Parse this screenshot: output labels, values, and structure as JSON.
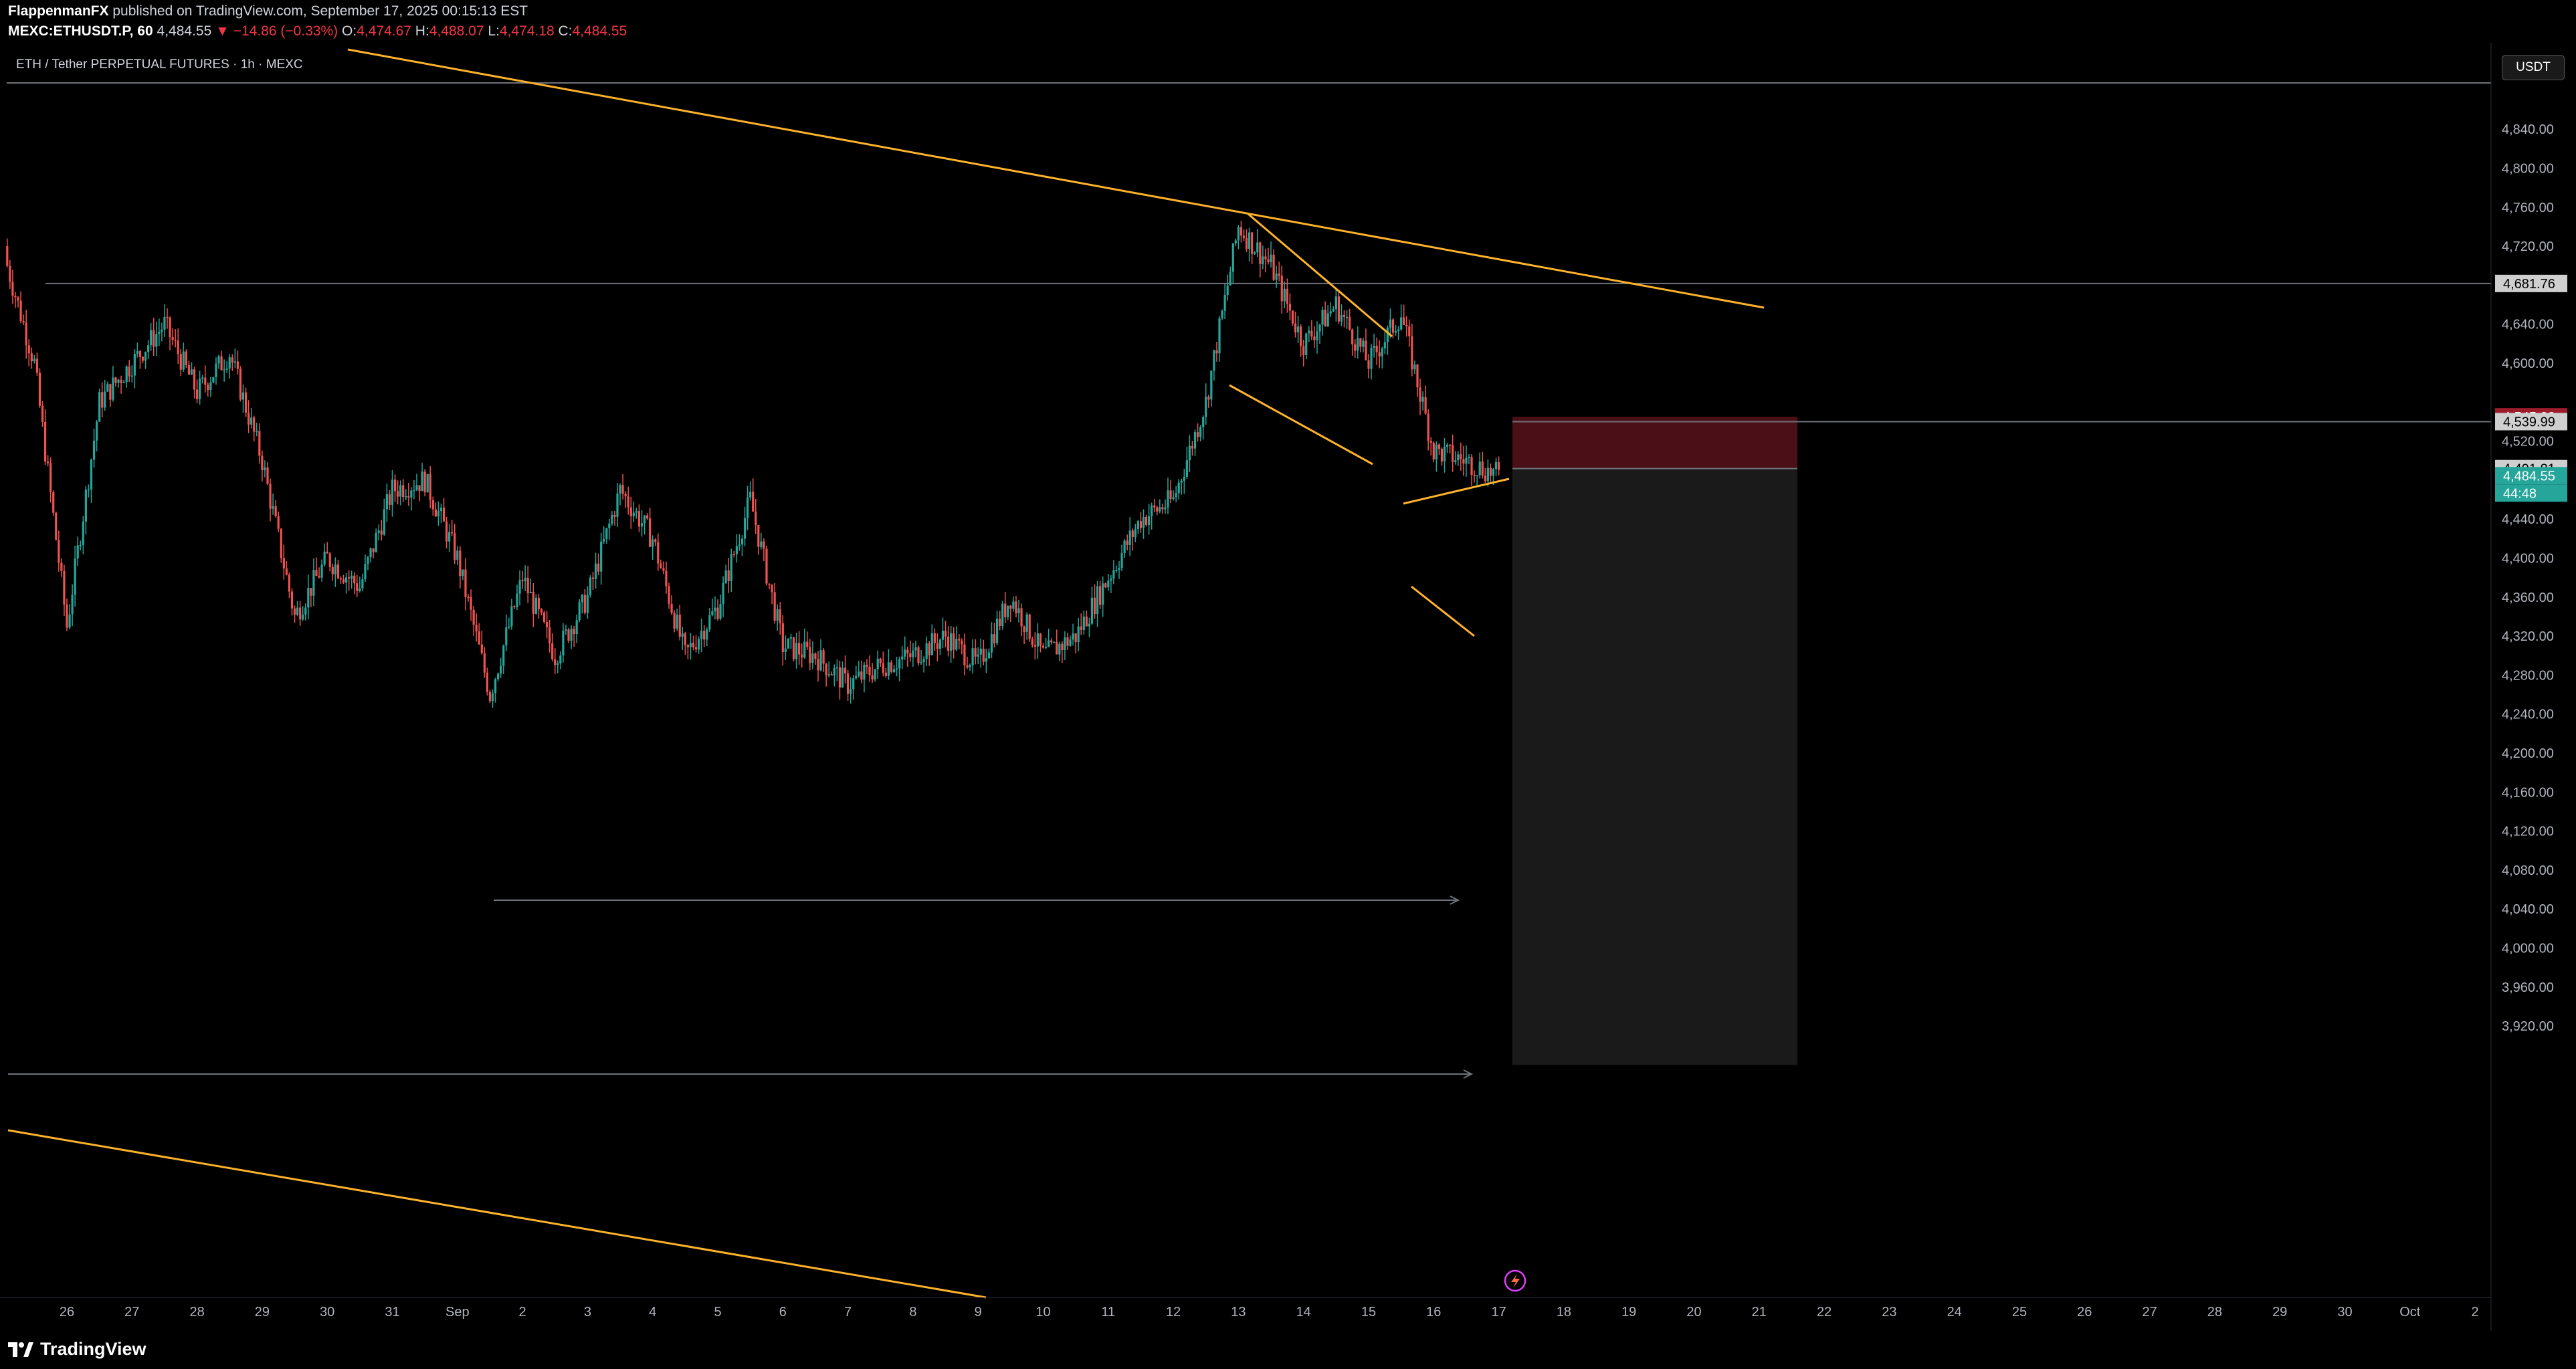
{
  "header": {
    "author": "FlappenmanFX",
    "published": " published on TradingView.com, September 17, 2025 00:15:13 EST",
    "symbol": "MEXC:ETHUSDT.P, 60",
    "price": "4,484.55",
    "change": "▼ −14.86 (−0.33%)",
    "open_label": "O:",
    "open": "4,474.67",
    "high_label": "H:",
    "high": "4,488.07",
    "low_label": "L:",
    "low": "4,474.18",
    "close_label": "C:",
    "close": "4,484.55"
  },
  "chart_title": "ETH / Tether PERPETUAL FUTURES · 1h · MEXC",
  "currency_button": "USDT",
  "footer_brand": "TradingView",
  "price_axis": {
    "ticks": [
      "4,840.00",
      "4,800.00",
      "4,760.00",
      "4,720.00",
      "4,640.00",
      "4,600.00",
      "4,520.00",
      "4,440.00",
      "4,400.00",
      "4,360.00",
      "4,320.00",
      "4,280.00",
      "4,240.00",
      "4,200.00",
      "4,160.00",
      "4,120.00",
      "4,080.00",
      "4,040.00",
      "4,000.00",
      "3,960.00",
      "3,920.00"
    ],
    "tick_values": [
      4840,
      4800,
      4760,
      4720,
      4640,
      4600,
      4520,
      4440,
      4400,
      4360,
      4320,
      4280,
      4240,
      4200,
      4160,
      4120,
      4080,
      4040,
      4000,
      3960,
      3920
    ],
    "tags": [
      {
        "label": "4,681.76",
        "value": 4681.76,
        "bg": "#cfcfcf",
        "fg": "#000000"
      },
      {
        "label": "4,545.00",
        "value": 4545.0,
        "bg": "#9c1c2c",
        "fg": "#ffffff"
      },
      {
        "label": "4,539.99",
        "value": 4539.99,
        "bg": "#cfcfcf",
        "fg": "#000000"
      },
      {
        "label": "4,491.81",
        "value": 4491.81,
        "bg": "#cfcfcf",
        "fg": "#000000"
      },
      {
        "label": "4,484.55",
        "value": 4484.55,
        "bg": "#26a69a",
        "fg": "#ffffff"
      },
      {
        "label": "44:48",
        "value": null,
        "bg": "#26a69a",
        "fg": "#ffffff"
      }
    ]
  },
  "time_axis": {
    "labels": [
      "26",
      "27",
      "28",
      "29",
      "30",
      "31",
      "Sep",
      "2",
      "3",
      "4",
      "5",
      "6",
      "7",
      "8",
      "9",
      "10",
      "11",
      "12",
      "13",
      "14",
      "15",
      "16",
      "17",
      "18",
      "19",
      "20",
      "21",
      "22",
      "23",
      "24",
      "25",
      "26",
      "27",
      "28",
      "29",
      "30",
      "Oct",
      "2"
    ]
  },
  "colors": {
    "up": "#26a69a",
    "down": "#ef5350",
    "trendline": "#ffb32b",
    "level_line": "#6f7379",
    "short_zone": "#4a0f17",
    "target_zone": "#1a1a1a",
    "background": "#000000"
  },
  "chart_data": {
    "type": "candlestick",
    "symbol": "MEXC:ETHUSDT.P",
    "interval": "1h",
    "ylim": [
      3890,
      4870
    ],
    "levels": [
      4681.76,
      4539.99,
      4491.81
    ],
    "close_path": [
      {
        "x": "2025-08-25",
        "y": 4720
      },
      {
        "x": "2025-08-25 12:00",
        "y": 4600
      },
      {
        "x": "2025-08-26",
        "y": 4330
      },
      {
        "x": "2025-08-26 12:00",
        "y": 4560
      },
      {
        "x": "2025-08-27",
        "y": 4600
      },
      {
        "x": "2025-08-27 12:00",
        "y": 4640
      },
      {
        "x": "2025-08-28",
        "y": 4570
      },
      {
        "x": "2025-08-28 12:00",
        "y": 4610
      },
      {
        "x": "2025-08-29",
        "y": 4500
      },
      {
        "x": "2025-08-29 12:00",
        "y": 4340
      },
      {
        "x": "2025-08-30",
        "y": 4400
      },
      {
        "x": "2025-08-30 12:00",
        "y": 4370
      },
      {
        "x": "2025-08-31",
        "y": 4470
      },
      {
        "x": "2025-08-31 12:00",
        "y": 4480
      },
      {
        "x": "2025-09-01",
        "y": 4400
      },
      {
        "x": "2025-09-01 12:00",
        "y": 4260
      },
      {
        "x": "2025-09-02",
        "y": 4380
      },
      {
        "x": "2025-09-02 12:00",
        "y": 4300
      },
      {
        "x": "2025-09-03",
        "y": 4360
      },
      {
        "x": "2025-09-03 12:00",
        "y": 4470
      },
      {
        "x": "2025-09-04",
        "y": 4420
      },
      {
        "x": "2025-09-04 12:00",
        "y": 4300
      },
      {
        "x": "2025-09-05",
        "y": 4350
      },
      {
        "x": "2025-09-05 12:00",
        "y": 4460
      },
      {
        "x": "2025-09-06",
        "y": 4310
      },
      {
        "x": "2025-09-06 12:00",
        "y": 4300
      },
      {
        "x": "2025-09-07",
        "y": 4270
      },
      {
        "x": "2025-09-07 12:00",
        "y": 4290
      },
      {
        "x": "2025-09-08",
        "y": 4300
      },
      {
        "x": "2025-09-08 12:00",
        "y": 4320
      },
      {
        "x": "2025-09-09",
        "y": 4290
      },
      {
        "x": "2025-09-09 12:00",
        "y": 4360
      },
      {
        "x": "2025-09-10",
        "y": 4300
      },
      {
        "x": "2025-09-10 12:00",
        "y": 4320
      },
      {
        "x": "2025-09-11",
        "y": 4380
      },
      {
        "x": "2025-09-11 12:00",
        "y": 4440
      },
      {
        "x": "2025-09-12",
        "y": 4460
      },
      {
        "x": "2025-09-12 12:00",
        "y": 4560
      },
      {
        "x": "2025-09-13",
        "y": 4740
      },
      {
        "x": "2025-09-13 12:00",
        "y": 4700
      },
      {
        "x": "2025-09-14",
        "y": 4620
      },
      {
        "x": "2025-09-14 12:00",
        "y": 4660
      },
      {
        "x": "2025-09-15",
        "y": 4600
      },
      {
        "x": "2025-09-15 12:00",
        "y": 4650
      },
      {
        "x": "2025-09-16",
        "y": 4510
      },
      {
        "x": "2025-09-16 12:00",
        "y": 4500
      },
      {
        "x": "2025-09-17",
        "y": 4484.55
      }
    ]
  }
}
